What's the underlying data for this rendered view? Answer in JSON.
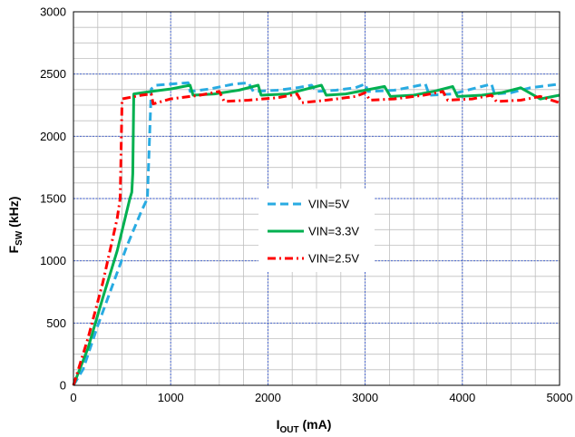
{
  "chart_data": {
    "type": "line",
    "xlabel": {
      "main": "I",
      "sub": "OUT",
      "rest": " (mA)"
    },
    "ylabel": {
      "main": "F",
      "sub": "SW",
      "rest": " (kHz)"
    },
    "xlim": [
      0,
      5000
    ],
    "ylim": [
      0,
      3000
    ],
    "xticks": [
      "0",
      "1000",
      "2000",
      "3000",
      "4000",
      "5000"
    ],
    "yticks": [
      "0",
      "500",
      "1000",
      "1500",
      "2000",
      "2500",
      "3000"
    ],
    "grid": true,
    "legend_position": "center",
    "series": [
      {
        "name": "VIN=5V",
        "color": "#29abe2",
        "dash": "dash",
        "points": [
          [
            0,
            0
          ],
          [
            100,
            130
          ],
          [
            250,
            480
          ],
          [
            400,
            800
          ],
          [
            550,
            1120
          ],
          [
            700,
            1400
          ],
          [
            760,
            1500
          ],
          [
            800,
            2380
          ],
          [
            850,
            2410
          ],
          [
            1000,
            2420
          ],
          [
            1180,
            2430
          ],
          [
            1200,
            2360
          ],
          [
            1400,
            2380
          ],
          [
            1650,
            2420
          ],
          [
            1800,
            2430
          ],
          [
            1850,
            2360
          ],
          [
            2100,
            2370
          ],
          [
            2300,
            2390
          ],
          [
            2450,
            2410
          ],
          [
            2500,
            2360
          ],
          [
            2700,
            2370
          ],
          [
            2900,
            2390
          ],
          [
            3000,
            2420
          ],
          [
            3030,
            2360
          ],
          [
            3300,
            2370
          ],
          [
            3500,
            2400
          ],
          [
            3620,
            2420
          ],
          [
            3660,
            2330
          ],
          [
            3900,
            2340
          ],
          [
            4100,
            2380
          ],
          [
            4300,
            2420
          ],
          [
            4330,
            2340
          ],
          [
            4500,
            2350
          ],
          [
            4700,
            2390
          ],
          [
            5000,
            2420
          ]
        ]
      },
      {
        "name": "VIN=3.3V",
        "color": "#00b050",
        "dash": "solid",
        "points": [
          [
            0,
            0
          ],
          [
            150,
            300
          ],
          [
            300,
            700
          ],
          [
            450,
            1080
          ],
          [
            580,
            1500
          ],
          [
            600,
            1550
          ],
          [
            610,
            1700
          ],
          [
            620,
            2340
          ],
          [
            800,
            2360
          ],
          [
            1000,
            2380
          ],
          [
            1200,
            2410
          ],
          [
            1230,
            2330
          ],
          [
            1450,
            2340
          ],
          [
            1700,
            2370
          ],
          [
            1900,
            2410
          ],
          [
            1930,
            2330
          ],
          [
            2200,
            2340
          ],
          [
            2400,
            2380
          ],
          [
            2550,
            2410
          ],
          [
            2600,
            2330
          ],
          [
            2800,
            2340
          ],
          [
            3000,
            2370
          ],
          [
            3200,
            2400
          ],
          [
            3260,
            2320
          ],
          [
            3500,
            2330
          ],
          [
            3700,
            2360
          ],
          [
            3900,
            2400
          ],
          [
            3950,
            2320
          ],
          [
            4200,
            2330
          ],
          [
            4400,
            2350
          ],
          [
            4600,
            2390
          ],
          [
            4800,
            2300
          ],
          [
            5000,
            2330
          ]
        ]
      },
      {
        "name": "VIN=2.5V",
        "color": "#ff0000",
        "dash": "dashdot",
        "points": [
          [
            0,
            0
          ],
          [
            150,
            380
          ],
          [
            300,
            820
          ],
          [
            450,
            1340
          ],
          [
            480,
            1500
          ],
          [
            500,
            2300
          ],
          [
            700,
            2330
          ],
          [
            800,
            2340
          ],
          [
            820,
            2260
          ],
          [
            1000,
            2300
          ],
          [
            1300,
            2330
          ],
          [
            1500,
            2360
          ],
          [
            1550,
            2280
          ],
          [
            1800,
            2290
          ],
          [
            2100,
            2310
          ],
          [
            2300,
            2340
          ],
          [
            2350,
            2270
          ],
          [
            2600,
            2290
          ],
          [
            2900,
            2320
          ],
          [
            3000,
            2350
          ],
          [
            3050,
            2290
          ],
          [
            3300,
            2300
          ],
          [
            3600,
            2330
          ],
          [
            3800,
            2360
          ],
          [
            3850,
            2290
          ],
          [
            4100,
            2300
          ],
          [
            4300,
            2330
          ],
          [
            4350,
            2280
          ],
          [
            4600,
            2290
          ],
          [
            4800,
            2320
          ],
          [
            5000,
            2270
          ]
        ]
      }
    ]
  }
}
